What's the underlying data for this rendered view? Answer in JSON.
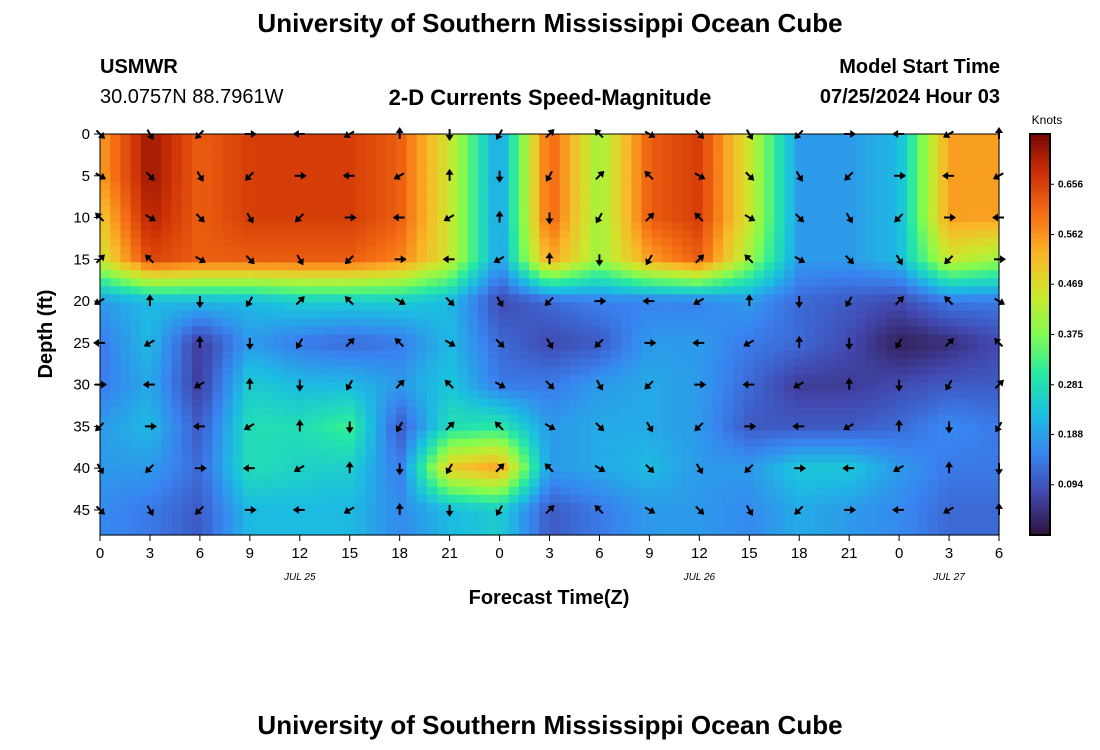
{
  "page": {
    "title": "University of Southern Mississippi Ocean Cube",
    "station": "USMWR",
    "coords": "30.0757N  88.7961W",
    "plot_title": "2-D Currents Speed-Magnitude",
    "model_start_label": "Model Start Time",
    "model_start_value": "07/25/2024 Hour 03",
    "bottom_title": "University of Southern Mississippi Ocean Cube"
  },
  "chart_data": {
    "type": "heatmap",
    "xlabel": "Forecast Time(Z)",
    "ylabel": "Depth (ft)",
    "x_tick_labels": [
      "0",
      "3",
      "6",
      "9",
      "12",
      "15",
      "18",
      "21",
      "0",
      "3",
      "6",
      "9",
      "12",
      "15",
      "18",
      "21",
      "0",
      "3",
      "6"
    ],
    "date_labels": [
      {
        "label": "JUL 25",
        "at_hour": 12
      },
      {
        "label": "JUL 26",
        "at_hour": 36
      },
      {
        "label": "JUL 27",
        "at_hour": 51
      }
    ],
    "xlim_hours": [
      0,
      54
    ],
    "ylim_ft": [
      0,
      48
    ],
    "y_ticks": [
      0,
      5,
      10,
      15,
      20,
      25,
      30,
      35,
      40,
      45
    ],
    "colorbar": {
      "label": "Knots",
      "ticks": [
        0.094,
        0.188,
        0.281,
        0.375,
        0.469,
        0.562,
        0.656
      ],
      "range": [
        0,
        0.75
      ]
    },
    "depths_ft": [
      0,
      5,
      10,
      15,
      20,
      25,
      30,
      35,
      40,
      45
    ],
    "hours": [
      0,
      3,
      6,
      9,
      12,
      15,
      18,
      21,
      24,
      27,
      30,
      33,
      36,
      39,
      42,
      45,
      48,
      51,
      54
    ],
    "speed_knots": [
      [
        0.55,
        0.72,
        0.62,
        0.66,
        0.66,
        0.66,
        0.62,
        0.45,
        0.18,
        0.62,
        0.4,
        0.62,
        0.66,
        0.45,
        0.18,
        0.18,
        0.22,
        0.55,
        0.55
      ],
      [
        0.55,
        0.72,
        0.62,
        0.66,
        0.66,
        0.66,
        0.62,
        0.45,
        0.18,
        0.62,
        0.4,
        0.62,
        0.66,
        0.45,
        0.18,
        0.18,
        0.22,
        0.55,
        0.55
      ],
      [
        0.5,
        0.7,
        0.62,
        0.66,
        0.66,
        0.66,
        0.62,
        0.45,
        0.18,
        0.62,
        0.4,
        0.62,
        0.66,
        0.45,
        0.18,
        0.18,
        0.22,
        0.55,
        0.55
      ],
      [
        0.45,
        0.65,
        0.62,
        0.62,
        0.62,
        0.62,
        0.58,
        0.45,
        0.18,
        0.55,
        0.4,
        0.55,
        0.62,
        0.4,
        0.18,
        0.18,
        0.22,
        0.45,
        0.4
      ],
      [
        0.18,
        0.22,
        0.22,
        0.22,
        0.25,
        0.25,
        0.25,
        0.22,
        0.08,
        0.12,
        0.15,
        0.15,
        0.15,
        0.18,
        0.12,
        0.1,
        0.08,
        0.14,
        0.14
      ],
      [
        0.14,
        0.22,
        0.06,
        0.18,
        0.14,
        0.12,
        0.14,
        0.22,
        0.12,
        0.08,
        0.1,
        0.18,
        0.18,
        0.14,
        0.12,
        0.08,
        0.02,
        0.04,
        0.08
      ],
      [
        0.14,
        0.2,
        0.06,
        0.25,
        0.22,
        0.22,
        0.18,
        0.24,
        0.14,
        0.14,
        0.18,
        0.2,
        0.18,
        0.12,
        0.06,
        0.06,
        0.08,
        0.1,
        0.1
      ],
      [
        0.18,
        0.22,
        0.1,
        0.28,
        0.28,
        0.32,
        0.1,
        0.28,
        0.3,
        0.18,
        0.2,
        0.2,
        0.18,
        0.1,
        0.1,
        0.1,
        0.12,
        0.16,
        0.14
      ],
      [
        0.18,
        0.18,
        0.12,
        0.28,
        0.26,
        0.25,
        0.14,
        0.5,
        0.55,
        0.18,
        0.2,
        0.22,
        0.18,
        0.18,
        0.24,
        0.24,
        0.18,
        0.14,
        0.14
      ],
      [
        0.16,
        0.14,
        0.1,
        0.22,
        0.22,
        0.22,
        0.16,
        0.22,
        0.25,
        0.1,
        0.14,
        0.18,
        0.18,
        0.16,
        0.2,
        0.18,
        0.16,
        0.12,
        0.12
      ]
    ]
  }
}
